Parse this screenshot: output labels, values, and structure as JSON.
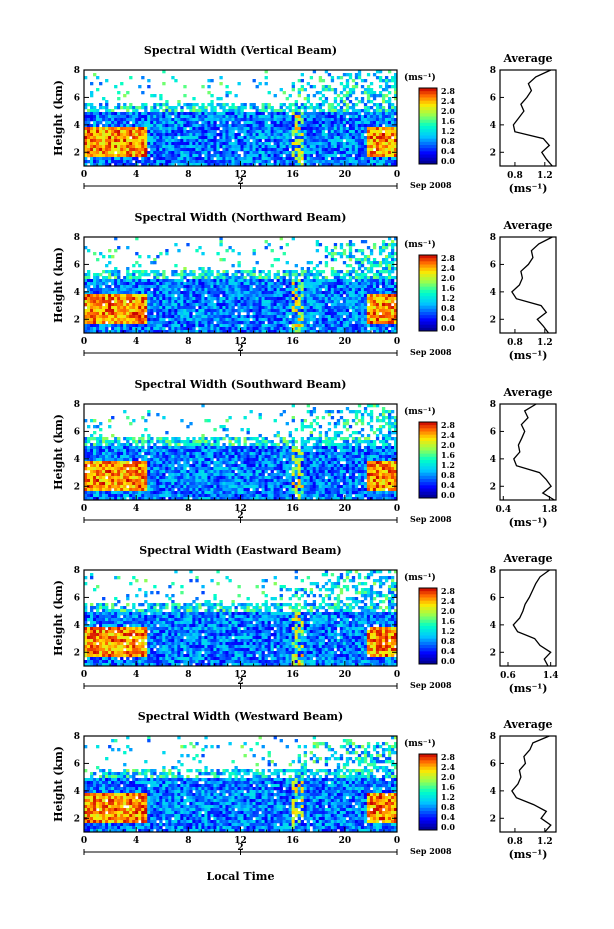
{
  "figure": {
    "footer_xlabel": "Local Time"
  },
  "chart_data": [
    {
      "type": "heatmap",
      "title": "Spectral Width (Vertical Beam)",
      "ylabel": "Height (km)",
      "x_ticks": [
        "0",
        "4",
        "8",
        "12",
        "16",
        "20",
        "0"
      ],
      "x_range": [
        0,
        24
      ],
      "y_ticks": [
        "2",
        "4",
        "6",
        "8"
      ],
      "ylim": [
        1,
        8
      ],
      "date_ticks": [
        "2"
      ],
      "date_label": "Sep 2008",
      "colorbar": {
        "unit": "(ms⁻¹)",
        "ticks": [
          "2.8",
          "2.4",
          "2.0",
          "1.6",
          "1.2",
          "0.8",
          "0.4",
          "0.0"
        ],
        "range": [
          0,
          2.8
        ]
      },
      "average": {
        "title": "Average",
        "xlabel": "(ms⁻¹)",
        "x_ticks": [
          "0.8",
          "1.2"
        ],
        "x_range": [
          0.6,
          1.35
        ],
        "y_ticks": [
          "2",
          "4",
          "6",
          "8"
        ],
        "ylim": [
          1,
          8
        ],
        "height": [
          1.0,
          1.5,
          2.0,
          2.5,
          3.0,
          3.5,
          4.0,
          4.5,
          5.0,
          5.5,
          6.0,
          6.5,
          7.0,
          7.5,
          8.0
        ],
        "value": [
          1.3,
          1.22,
          1.16,
          1.26,
          1.18,
          0.8,
          0.78,
          0.85,
          0.92,
          0.88,
          0.96,
          1.02,
          0.98,
          1.08,
          1.28
        ]
      }
    },
    {
      "type": "heatmap",
      "title": "Spectral Width (Northward Beam)",
      "ylabel": "Height (km)",
      "x_ticks": [
        "0",
        "4",
        "8",
        "12",
        "16",
        "20",
        "0"
      ],
      "x_range": [
        0,
        24
      ],
      "y_ticks": [
        "2",
        "4",
        "6",
        "8"
      ],
      "ylim": [
        1,
        8
      ],
      "date_ticks": [
        "2"
      ],
      "date_label": "Sep 2008",
      "colorbar": {
        "unit": "(ms⁻¹)",
        "ticks": [
          "2.8",
          "2.4",
          "2.0",
          "1.6",
          "1.2",
          "0.8",
          "0.4",
          "0.0"
        ],
        "range": [
          0,
          2.8
        ]
      },
      "average": {
        "title": "Average",
        "xlabel": "(ms⁻¹)",
        "x_ticks": [
          "0.8",
          "1.2"
        ],
        "x_range": [
          0.6,
          1.35
        ],
        "y_ticks": [
          "2",
          "4",
          "6",
          "8"
        ],
        "ylim": [
          1,
          8
        ],
        "height": [
          1.0,
          1.5,
          2.0,
          2.5,
          3.0,
          3.5,
          4.0,
          4.5,
          5.0,
          5.5,
          6.0,
          6.5,
          7.0,
          7.5,
          8.0
        ],
        "value": [
          1.25,
          1.18,
          1.1,
          1.22,
          1.15,
          0.82,
          0.76,
          0.86,
          0.9,
          0.88,
          0.98,
          1.04,
          1.02,
          1.12,
          1.3
        ]
      }
    },
    {
      "type": "heatmap",
      "title": "Spectral Width (Southward Beam)",
      "ylabel": "Height (km)",
      "x_ticks": [
        "0",
        "4",
        "8",
        "12",
        "16",
        "20",
        "0"
      ],
      "x_range": [
        0,
        24
      ],
      "y_ticks": [
        "2",
        "4",
        "6",
        "8"
      ],
      "ylim": [
        1,
        8
      ],
      "date_ticks": [
        "2"
      ],
      "date_label": "Sep 2008",
      "colorbar": {
        "unit": "(ms⁻¹)",
        "ticks": [
          "2.8",
          "2.4",
          "2.0",
          "1.6",
          "1.2",
          "0.8",
          "0.4",
          "0.0"
        ],
        "range": [
          0,
          2.8
        ]
      },
      "average": {
        "title": "Average",
        "xlabel": "(ms⁻¹)",
        "x_ticks": [
          "0.4",
          "1.8"
        ],
        "x_range": [
          0.3,
          2.0
        ],
        "y_ticks": [
          "2",
          "4",
          "6",
          "8"
        ],
        "ylim": [
          1,
          8
        ],
        "height": [
          1.0,
          1.5,
          2.0,
          2.5,
          3.0,
          3.5,
          4.0,
          4.5,
          5.0,
          5.5,
          6.0,
          6.5,
          7.0,
          7.5,
          8.0
        ],
        "value": [
          1.95,
          1.6,
          1.85,
          1.7,
          1.5,
          0.8,
          0.72,
          0.9,
          0.86,
          0.96,
          1.05,
          0.95,
          1.15,
          1.05,
          1.4
        ]
      }
    },
    {
      "type": "heatmap",
      "title": "Spectral Width (Eastward Beam)",
      "ylabel": "Height (km)",
      "x_ticks": [
        "0",
        "4",
        "8",
        "12",
        "16",
        "20",
        "0"
      ],
      "x_range": [
        0,
        24
      ],
      "y_ticks": [
        "2",
        "4",
        "6",
        "8"
      ],
      "ylim": [
        1,
        8
      ],
      "date_ticks": [
        "2"
      ],
      "date_label": "Sep 2008",
      "colorbar": {
        "unit": "(ms⁻¹)",
        "ticks": [
          "2.8",
          "2.4",
          "2.0",
          "1.6",
          "1.2",
          "0.8",
          "0.4",
          "0.0"
        ],
        "range": [
          0,
          2.8
        ]
      },
      "average": {
        "title": "Average",
        "xlabel": "(ms⁻¹)",
        "x_ticks": [
          "0.6",
          "1.4"
        ],
        "x_range": [
          0.45,
          1.5
        ],
        "y_ticks": [
          "2",
          "4",
          "6",
          "8"
        ],
        "ylim": [
          1,
          8
        ],
        "height": [
          1.0,
          1.5,
          2.0,
          2.5,
          3.0,
          3.5,
          4.0,
          4.5,
          5.0,
          5.5,
          6.0,
          6.5,
          7.0,
          7.5,
          8.0
        ],
        "value": [
          1.35,
          1.28,
          1.4,
          1.2,
          1.1,
          0.78,
          0.7,
          0.82,
          0.88,
          0.92,
          1.0,
          1.06,
          1.12,
          1.2,
          1.38
        ]
      }
    },
    {
      "type": "heatmap",
      "title": "Spectral Width (Westward Beam)",
      "ylabel": "Height (km)",
      "x_ticks": [
        "0",
        "4",
        "8",
        "12",
        "16",
        "20",
        "0"
      ],
      "x_range": [
        0,
        24
      ],
      "y_ticks": [
        "2",
        "4",
        "6",
        "8"
      ],
      "ylim": [
        1,
        8
      ],
      "date_ticks": [
        "2"
      ],
      "date_label": "Sep 2008",
      "colorbar": {
        "unit": "(ms⁻¹)",
        "ticks": [
          "2.8",
          "2.4",
          "2.0",
          "1.6",
          "1.2",
          "0.8",
          "0.4",
          "0.0"
        ],
        "range": [
          0,
          2.8
        ]
      },
      "average": {
        "title": "Average",
        "xlabel": "(ms⁻¹)",
        "x_ticks": [
          "0.8",
          "1.2"
        ],
        "x_range": [
          0.6,
          1.35
        ],
        "y_ticks": [
          "2",
          "4",
          "6",
          "8"
        ],
        "ylim": [
          1,
          8
        ],
        "height": [
          1.0,
          1.5,
          2.0,
          2.5,
          3.0,
          3.5,
          4.0,
          4.5,
          5.0,
          5.5,
          6.0,
          6.5,
          7.0,
          7.5,
          8.0
        ],
        "value": [
          1.2,
          1.28,
          1.15,
          1.22,
          1.05,
          0.82,
          0.76,
          0.84,
          0.88,
          0.86,
          0.94,
          0.92,
          1.0,
          1.04,
          1.26
        ]
      }
    }
  ]
}
